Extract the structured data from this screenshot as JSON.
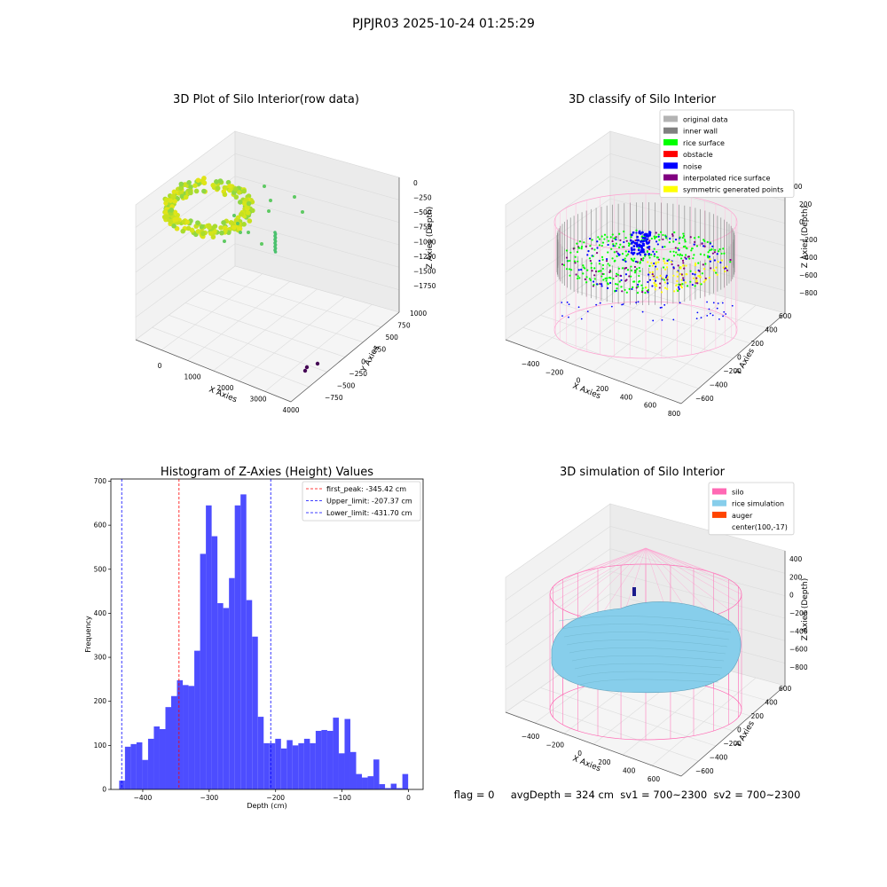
{
  "figure_title": "PJPJR03 2025-10-24 01:25:29",
  "footer": "flag = 0     avgDepth = 324 cm  sv1 = 700~2300  sv2 = 700~2300",
  "colors": {
    "hist_bar": "#4d4dff",
    "peak_line": "#ff0000",
    "limit_line": "#0000ff",
    "original_data": "#b3b3b3",
    "inner_wall": "#808080",
    "rice_surface": "#00ff00",
    "obstacle": "#ff0000",
    "noise": "#0000ff",
    "interpolated_rice_surface": "#800080",
    "symmetric_generated_points": "#ffff00",
    "silo": "#ff69b4",
    "rice_simulation": "#87ceeb",
    "auger": "#ff4500"
  },
  "chart_data": [
    {
      "type": "scatter",
      "projection": "3d",
      "title": "3D Plot of Silo Interior(row data)",
      "xlabel": "X Axies",
      "ylabel": "Y Axies",
      "zlabel": "Z Axies (Depth)",
      "x_ticks": [
        "0",
        "1000",
        "2000",
        "3000",
        "4000"
      ],
      "y_ticks": [
        "−750",
        "−500",
        "−250",
        "0",
        "250",
        "500",
        "750",
        "1000"
      ],
      "z_ticks": [
        "0",
        "−250",
        "−500",
        "−750",
        "−1000",
        "−1250",
        "−1500",
        "−1750"
      ],
      "grid": true
    },
    {
      "type": "scatter",
      "projection": "3d",
      "title": "3D classify of Silo Interior",
      "xlabel": "X Axies",
      "ylabel": "Y Axies",
      "zlabel": "Z Axies (Depth)",
      "x_ticks": [
        "−400",
        "−200",
        "0",
        "200",
        "400",
        "600",
        "800"
      ],
      "y_ticks": [
        "−600",
        "−400",
        "−200",
        "0",
        "200",
        "400",
        "600"
      ],
      "z_ticks": [
        "200",
        "0",
        "−200",
        "−400",
        "−600",
        "−800"
      ],
      "z_tick_top_partial": "00",
      "legend": [
        "original data",
        "inner wall",
        "rice surface",
        "obstacle",
        "noise",
        "interpolated rice surface",
        "symmetric generated points"
      ],
      "legend_position": "top-right",
      "grid": true
    },
    {
      "type": "bar",
      "title": "Histogram of Z-Axies (Height) Values",
      "xlabel": "Depth (cm)",
      "ylabel": "Frequency",
      "xlim": [
        -448,
        22
      ],
      "ylim": [
        0,
        705
      ],
      "bin_start": -435.5,
      "bin_width": 8.7,
      "x_ticks": [
        -400,
        -300,
        -200,
        -100,
        0
      ],
      "x_tick_labels": [
        "−400",
        "−300",
        "−200",
        "−100",
        "0"
      ],
      "y_ticks": [
        0,
        100,
        200,
        300,
        400,
        500,
        600,
        700
      ],
      "values": [
        20,
        97,
        103,
        107,
        67,
        115,
        143,
        137,
        187,
        212,
        248,
        237,
        235,
        315,
        535,
        645,
        575,
        423,
        412,
        480,
        645,
        670,
        430,
        347,
        165,
        105,
        105,
        115,
        93,
        112,
        100,
        105,
        115,
        105,
        133,
        135,
        133,
        163,
        82,
        160,
        85,
        35,
        27,
        30,
        68,
        12,
        3,
        13,
        3,
        35
      ],
      "vlines": [
        {
          "label": "first_peak: -345.42 cm",
          "x": -345.42,
          "color": "#ff0000"
        },
        {
          "label": "Upper_limit: -207.37 cm",
          "x": -207.37,
          "color": "#0000ff"
        },
        {
          "label": "Lower_limit: -431.70 cm",
          "x": -431.7,
          "color": "#0000ff"
        }
      ],
      "legend_position": "top-right",
      "grid": false
    },
    {
      "type": "surface",
      "projection": "3d",
      "title": "3D simulation of Silo Interior",
      "xlabel": "X Axies",
      "ylabel": "Y Axies",
      "zlabel": "Z Axies (Depth)",
      "x_ticks": [
        "−400",
        "−200",
        "0",
        "200",
        "400",
        "600"
      ],
      "y_ticks": [
        "−600",
        "−400",
        "−200",
        "0",
        "200",
        "400",
        "600"
      ],
      "z_ticks": [
        "400",
        "200",
        "0",
        "−200",
        "−400",
        "−600",
        "−800"
      ],
      "legend": [
        "silo",
        "rice simulation",
        "auger",
        "center(100,-17)"
      ],
      "legend_position": "top-right",
      "grid": true
    }
  ]
}
